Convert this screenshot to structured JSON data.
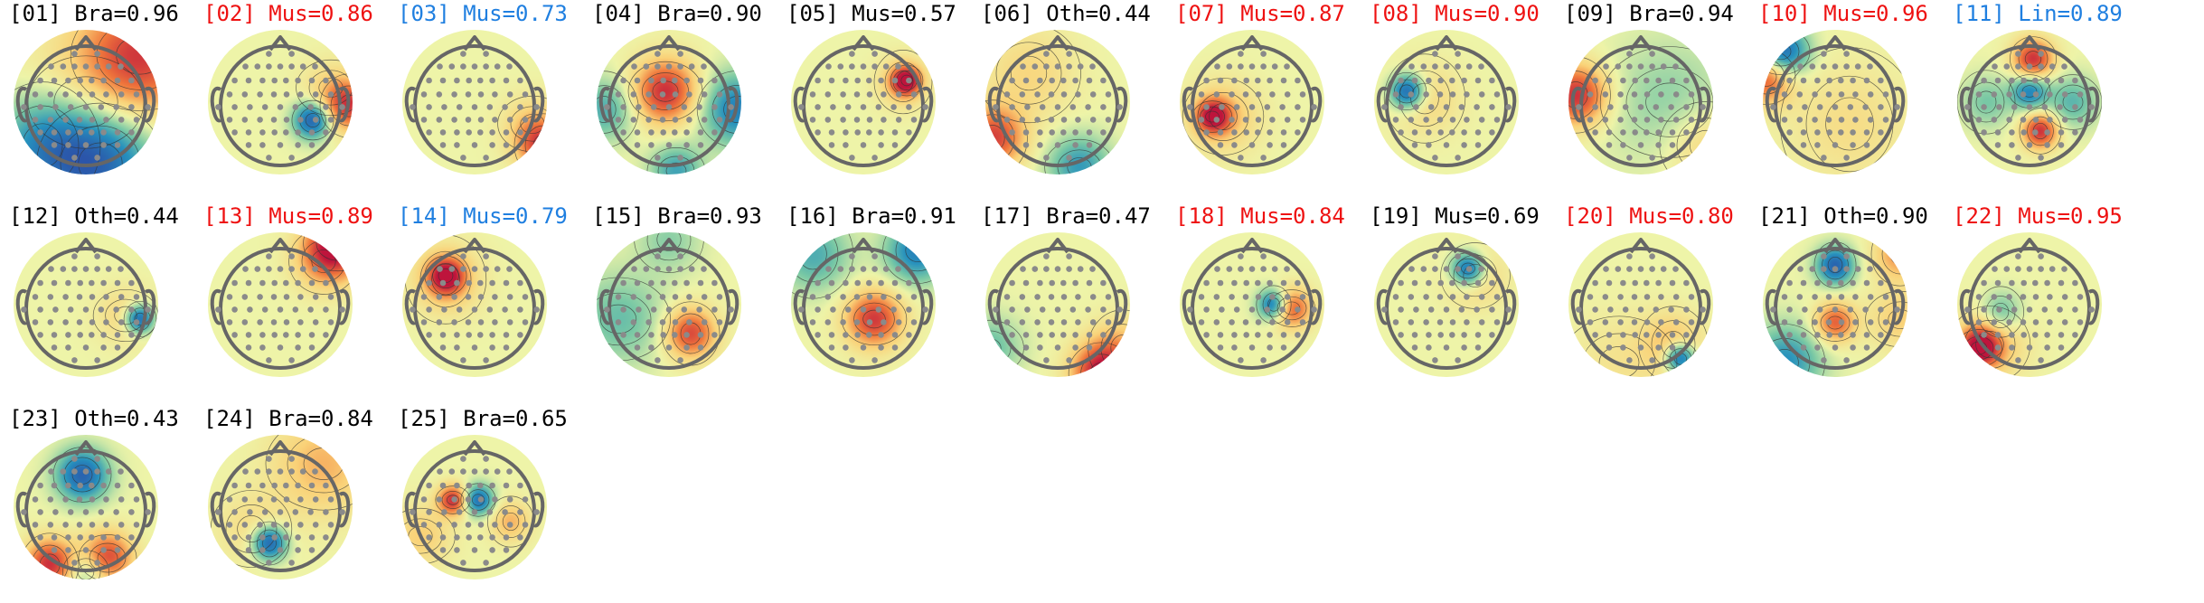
{
  "colors": {
    "brain": "#000000",
    "muscle": "#ee1111",
    "line_noise": "#1f7fe0",
    "other": "#000000",
    "electrode": "#8a8a8a",
    "head_outline": "#666666"
  },
  "components": [
    {
      "index": "[01]",
      "label": "Bra=0.96",
      "color": "brain"
    },
    {
      "index": "[02]",
      "label": "Mus=0.86",
      "color": "muscle"
    },
    {
      "index": "[03]",
      "label": "Mus=0.73",
      "color": "line_noise"
    },
    {
      "index": "[04]",
      "label": "Bra=0.90",
      "color": "brain"
    },
    {
      "index": "[05]",
      "label": "Mus=0.57",
      "color": "brain"
    },
    {
      "index": "[06]",
      "label": "Oth=0.44",
      "color": "brain"
    },
    {
      "index": "[07]",
      "label": "Mus=0.87",
      "color": "muscle"
    },
    {
      "index": "[08]",
      "label": "Mus=0.90",
      "color": "muscle"
    },
    {
      "index": "[09]",
      "label": "Bra=0.94",
      "color": "brain"
    },
    {
      "index": "[10]",
      "label": "Mus=0.96",
      "color": "muscle"
    },
    {
      "index": "[11]",
      "label": "Lin=0.89",
      "color": "line_noise"
    },
    {
      "index": "[12]",
      "label": "Oth=0.44",
      "color": "brain"
    },
    {
      "index": "[13]",
      "label": "Mus=0.89",
      "color": "muscle"
    },
    {
      "index": "[14]",
      "label": "Mus=0.79",
      "color": "line_noise"
    },
    {
      "index": "[15]",
      "label": "Bra=0.93",
      "color": "brain"
    },
    {
      "index": "[16]",
      "label": "Bra=0.91",
      "color": "brain"
    },
    {
      "index": "[17]",
      "label": "Bra=0.47",
      "color": "brain"
    },
    {
      "index": "[18]",
      "label": "Mus=0.84",
      "color": "muscle"
    },
    {
      "index": "[19]",
      "label": "Mus=0.69",
      "color": "brain"
    },
    {
      "index": "[20]",
      "label": "Mus=0.80",
      "color": "muscle"
    },
    {
      "index": "[21]",
      "label": "Oth=0.90",
      "color": "brain"
    },
    {
      "index": "[22]",
      "label": "Mus=0.95",
      "color": "muscle"
    },
    {
      "index": "[23]",
      "label": "Oth=0.43",
      "color": "brain"
    },
    {
      "index": "[24]",
      "label": "Bra=0.84",
      "color": "brain"
    },
    {
      "index": "[25]",
      "label": "Bra=0.65",
      "color": "brain"
    }
  ]
}
